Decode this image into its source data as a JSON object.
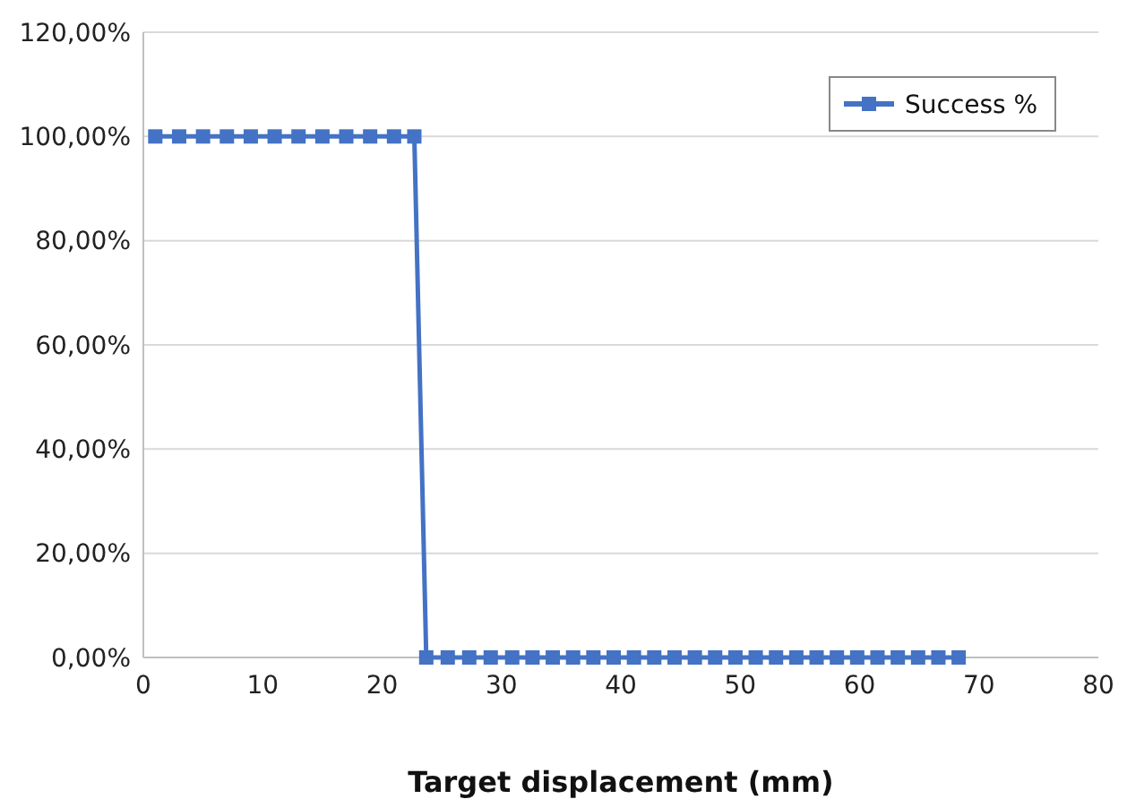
{
  "chart_data": {
    "type": "line",
    "xlabel": "Target displacement (mm)",
    "xlim": [
      0,
      80
    ],
    "xticks": [
      0,
      10,
      20,
      30,
      40,
      50,
      60,
      70,
      80
    ],
    "ylim": [
      0,
      120
    ],
    "yticks": [
      {
        "value": 0,
        "label": "0,00%"
      },
      {
        "value": 20,
        "label": "20,00%"
      },
      {
        "value": 40,
        "label": "40,00%"
      },
      {
        "value": 60,
        "label": "60,00%"
      },
      {
        "value": 80,
        "label": "80,00%"
      },
      {
        "value": 100,
        "label": "100,00%"
      },
      {
        "value": 120,
        "label": "120,00%"
      }
    ],
    "grid": "y",
    "legend": "top right",
    "marker": "square",
    "series": [
      {
        "name": "Success %",
        "color": "#4472c4",
        "x": [
          1,
          3,
          5,
          7,
          9,
          11,
          13,
          15,
          17,
          19,
          21,
          22.7,
          23.7,
          25.5,
          27.3,
          29.1,
          30.9,
          32.6,
          34.3,
          36,
          37.7,
          39.4,
          41.1,
          42.8,
          44.5,
          46.2,
          47.9,
          49.6,
          51.3,
          53,
          54.7,
          56.4,
          58.1,
          59.8,
          61.5,
          63.2,
          64.9,
          66.6,
          68.3
        ],
        "values": [
          100,
          100,
          100,
          100,
          100,
          100,
          100,
          100,
          100,
          100,
          100,
          100,
          0,
          0,
          0,
          0,
          0,
          0,
          0,
          0,
          0,
          0,
          0,
          0,
          0,
          0,
          0,
          0,
          0,
          0,
          0,
          0,
          0,
          0,
          0,
          0,
          0,
          0,
          0
        ]
      }
    ]
  }
}
